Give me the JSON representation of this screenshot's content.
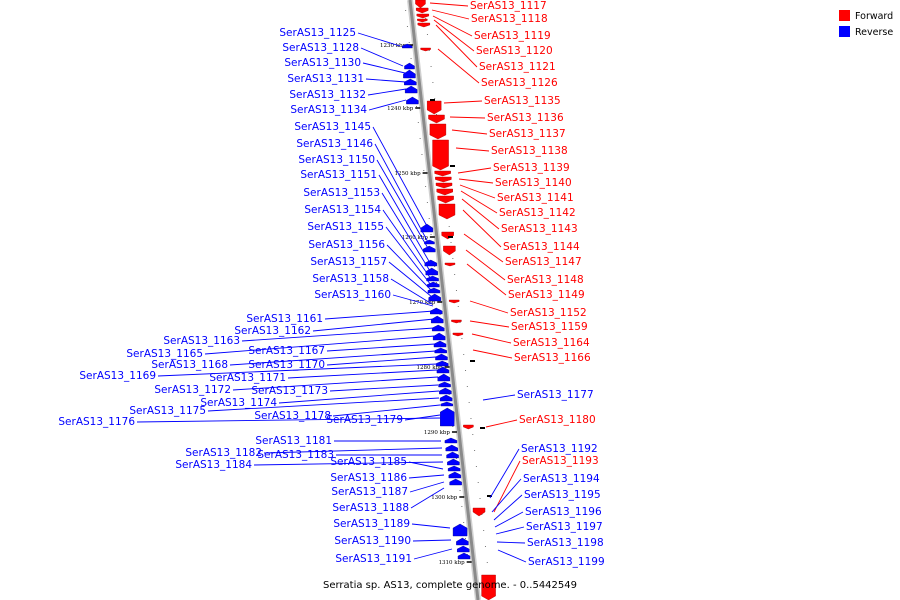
{
  "caption": "Serratia sp. AS13, complete genome. - 0..5442549",
  "colors": {
    "forward": "#ff0000",
    "reverse": "#0000ff",
    "backbone": "#8a8a8a",
    "backbone_light": "#d0d0d0",
    "leader": "#000000"
  },
  "legend": [
    {
      "label": "Forward",
      "color": "#ff0000"
    },
    {
      "label": "Reverse",
      "color": "#0000ff"
    }
  ],
  "ticks": [
    "1230 kbp",
    "1240 kbp",
    "1250 kbp",
    "1260 kbp",
    "1270 kbp",
    "1280 kbp",
    "1290 kbp",
    "1300 kbp",
    "1310 kbp"
  ],
  "forward_labels": [
    "SerAS13_1117",
    "SerAS13_1118",
    "SerAS13_1119",
    "SerAS13_1120",
    "SerAS13_1121",
    "SerAS13_1126",
    "SerAS13_1135",
    "SerAS13_1136",
    "SerAS13_1137",
    "SerAS13_1138",
    "SerAS13_1139",
    "SerAS13_1140",
    "SerAS13_1141",
    "SerAS13_1142",
    "SerAS13_1143",
    "SerAS13_1144",
    "SerAS13_1147",
    "SerAS13_1148",
    "SerAS13_1149",
    "SerAS13_1152",
    "SerAS13_1159",
    "SerAS13_1164",
    "SerAS13_1166",
    "SerAS13_1180",
    "SerAS13_1193"
  ],
  "reverse_labels": [
    "SerAS13_1125",
    "SerAS13_1128",
    "SerAS13_1130",
    "SerAS13_1131",
    "SerAS13_1132",
    "SerAS13_1134",
    "SerAS13_1145",
    "SerAS13_1146",
    "SerAS13_1150",
    "SerAS13_1151",
    "SerAS13_1153",
    "SerAS13_1154",
    "SerAS13_1155",
    "SerAS13_1156",
    "SerAS13_1157",
    "SerAS13_1158",
    "SerAS13_1160",
    "SerAS13_1161",
    "SerAS13_1162",
    "SerAS13_1163",
    "SerAS13_1165",
    "SerAS13_1167",
    "SerAS13_1168",
    "SerAS13_1170",
    "SerAS13_1169",
    "SerAS13_1171",
    "SerAS13_1172",
    "SerAS13_1173",
    "SerAS13_1174",
    "SerAS13_1175",
    "SerAS13_1178",
    "SerAS13_1179",
    "SerAS13_1176",
    "SerAS13_1181",
    "SerAS13_1182",
    "SerAS13_1183",
    "SerAS13_1184",
    "SerAS13_1185",
    "SerAS13_1186",
    "SerAS13_1187",
    "SerAS13_1188",
    "SerAS13_1189",
    "SerAS13_1190",
    "SerAS13_1191",
    "SerAS13_1177",
    "SerAS13_1192",
    "SerAS13_1194",
    "SerAS13_1195",
    "SerAS13_1196",
    "SerAS13_1197",
    "SerAS13_1198",
    "SerAS13_1199"
  ]
}
